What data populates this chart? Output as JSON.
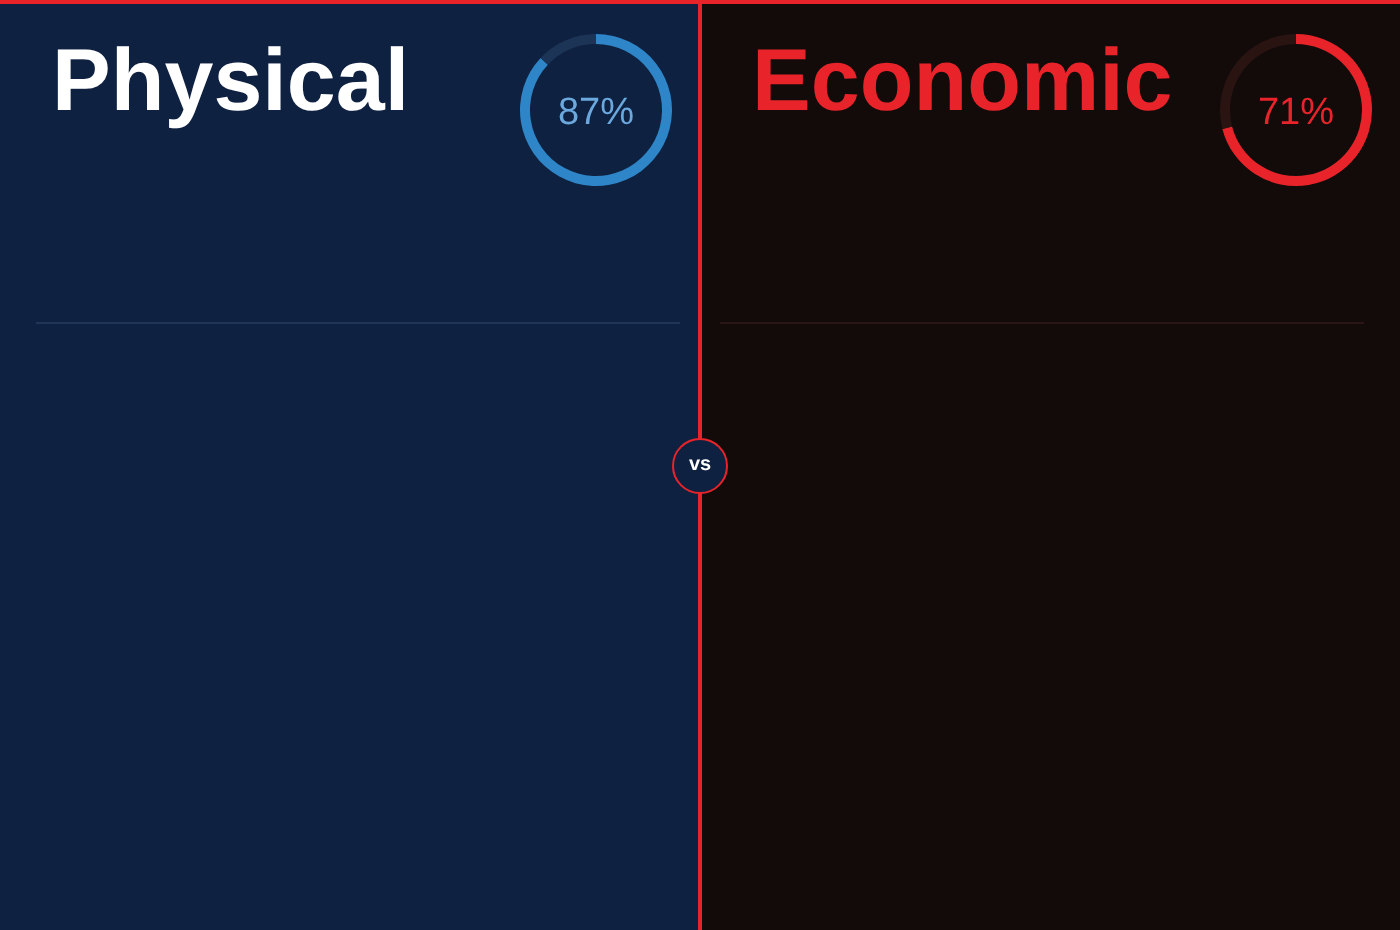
{
  "chart_data": [
    {
      "type": "donut",
      "title": "Physical",
      "categories": [
        null,
        null
      ],
      "values": [
        87,
        13
      ],
      "colors": [
        "#2e86c8",
        "#1c3557"
      ],
      "value_labels": [
        "87%",
        null
      ],
      "annotations": [
        "vs"
      ]
    },
    {
      "type": "donut",
      "title": "Economic",
      "categories": [
        null,
        null
      ],
      "values": [
        71,
        29
      ],
      "colors": [
        "#e8242a",
        "#2a1412"
      ],
      "value_labels": [
        "71%",
        null
      ]
    }
  ]
}
